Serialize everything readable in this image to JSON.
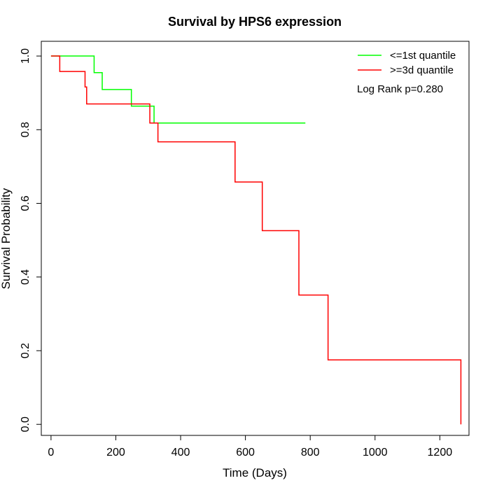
{
  "chart_data": {
    "type": "line",
    "title": "Survival by HPS6 expression",
    "xlabel": "Time (Days)",
    "ylabel": "Survival Probability",
    "xlim": [
      -30,
      1290
    ],
    "ylim": [
      -0.03,
      1.04
    ],
    "xticks": [
      0,
      200,
      400,
      600,
      800,
      1000,
      1200
    ],
    "yticks": [
      0.0,
      0.2,
      0.4,
      0.6,
      0.8,
      1.0
    ],
    "xtick_labels": [
      "0",
      "200",
      "400",
      "600",
      "800",
      "1000",
      "1200"
    ],
    "ytick_labels": [
      "0.0",
      "0.2",
      "0.4",
      "0.6",
      "0.8",
      "1.0"
    ],
    "grid": false,
    "legend_position": "top-right",
    "annotation": "Log Rank p=0.280",
    "series": [
      {
        "name": "<=1st quantile",
        "color": "#00ff00",
        "step": "post",
        "x": [
          0,
          133,
          158,
          248,
          318,
          785
        ],
        "y": [
          1.0,
          0.955,
          0.909,
          0.864,
          0.818,
          0.818
        ]
      },
      {
        "name": ">=3d quantile",
        "color": "#ff0000",
        "step": "post",
        "x": [
          0,
          27,
          105,
          110,
          305,
          330,
          568,
          652,
          765,
          855,
          1265
        ],
        "y": [
          1.0,
          0.958,
          0.916,
          0.87,
          0.818,
          0.767,
          0.658,
          0.526,
          0.351,
          0.175,
          0.0
        ]
      }
    ]
  }
}
